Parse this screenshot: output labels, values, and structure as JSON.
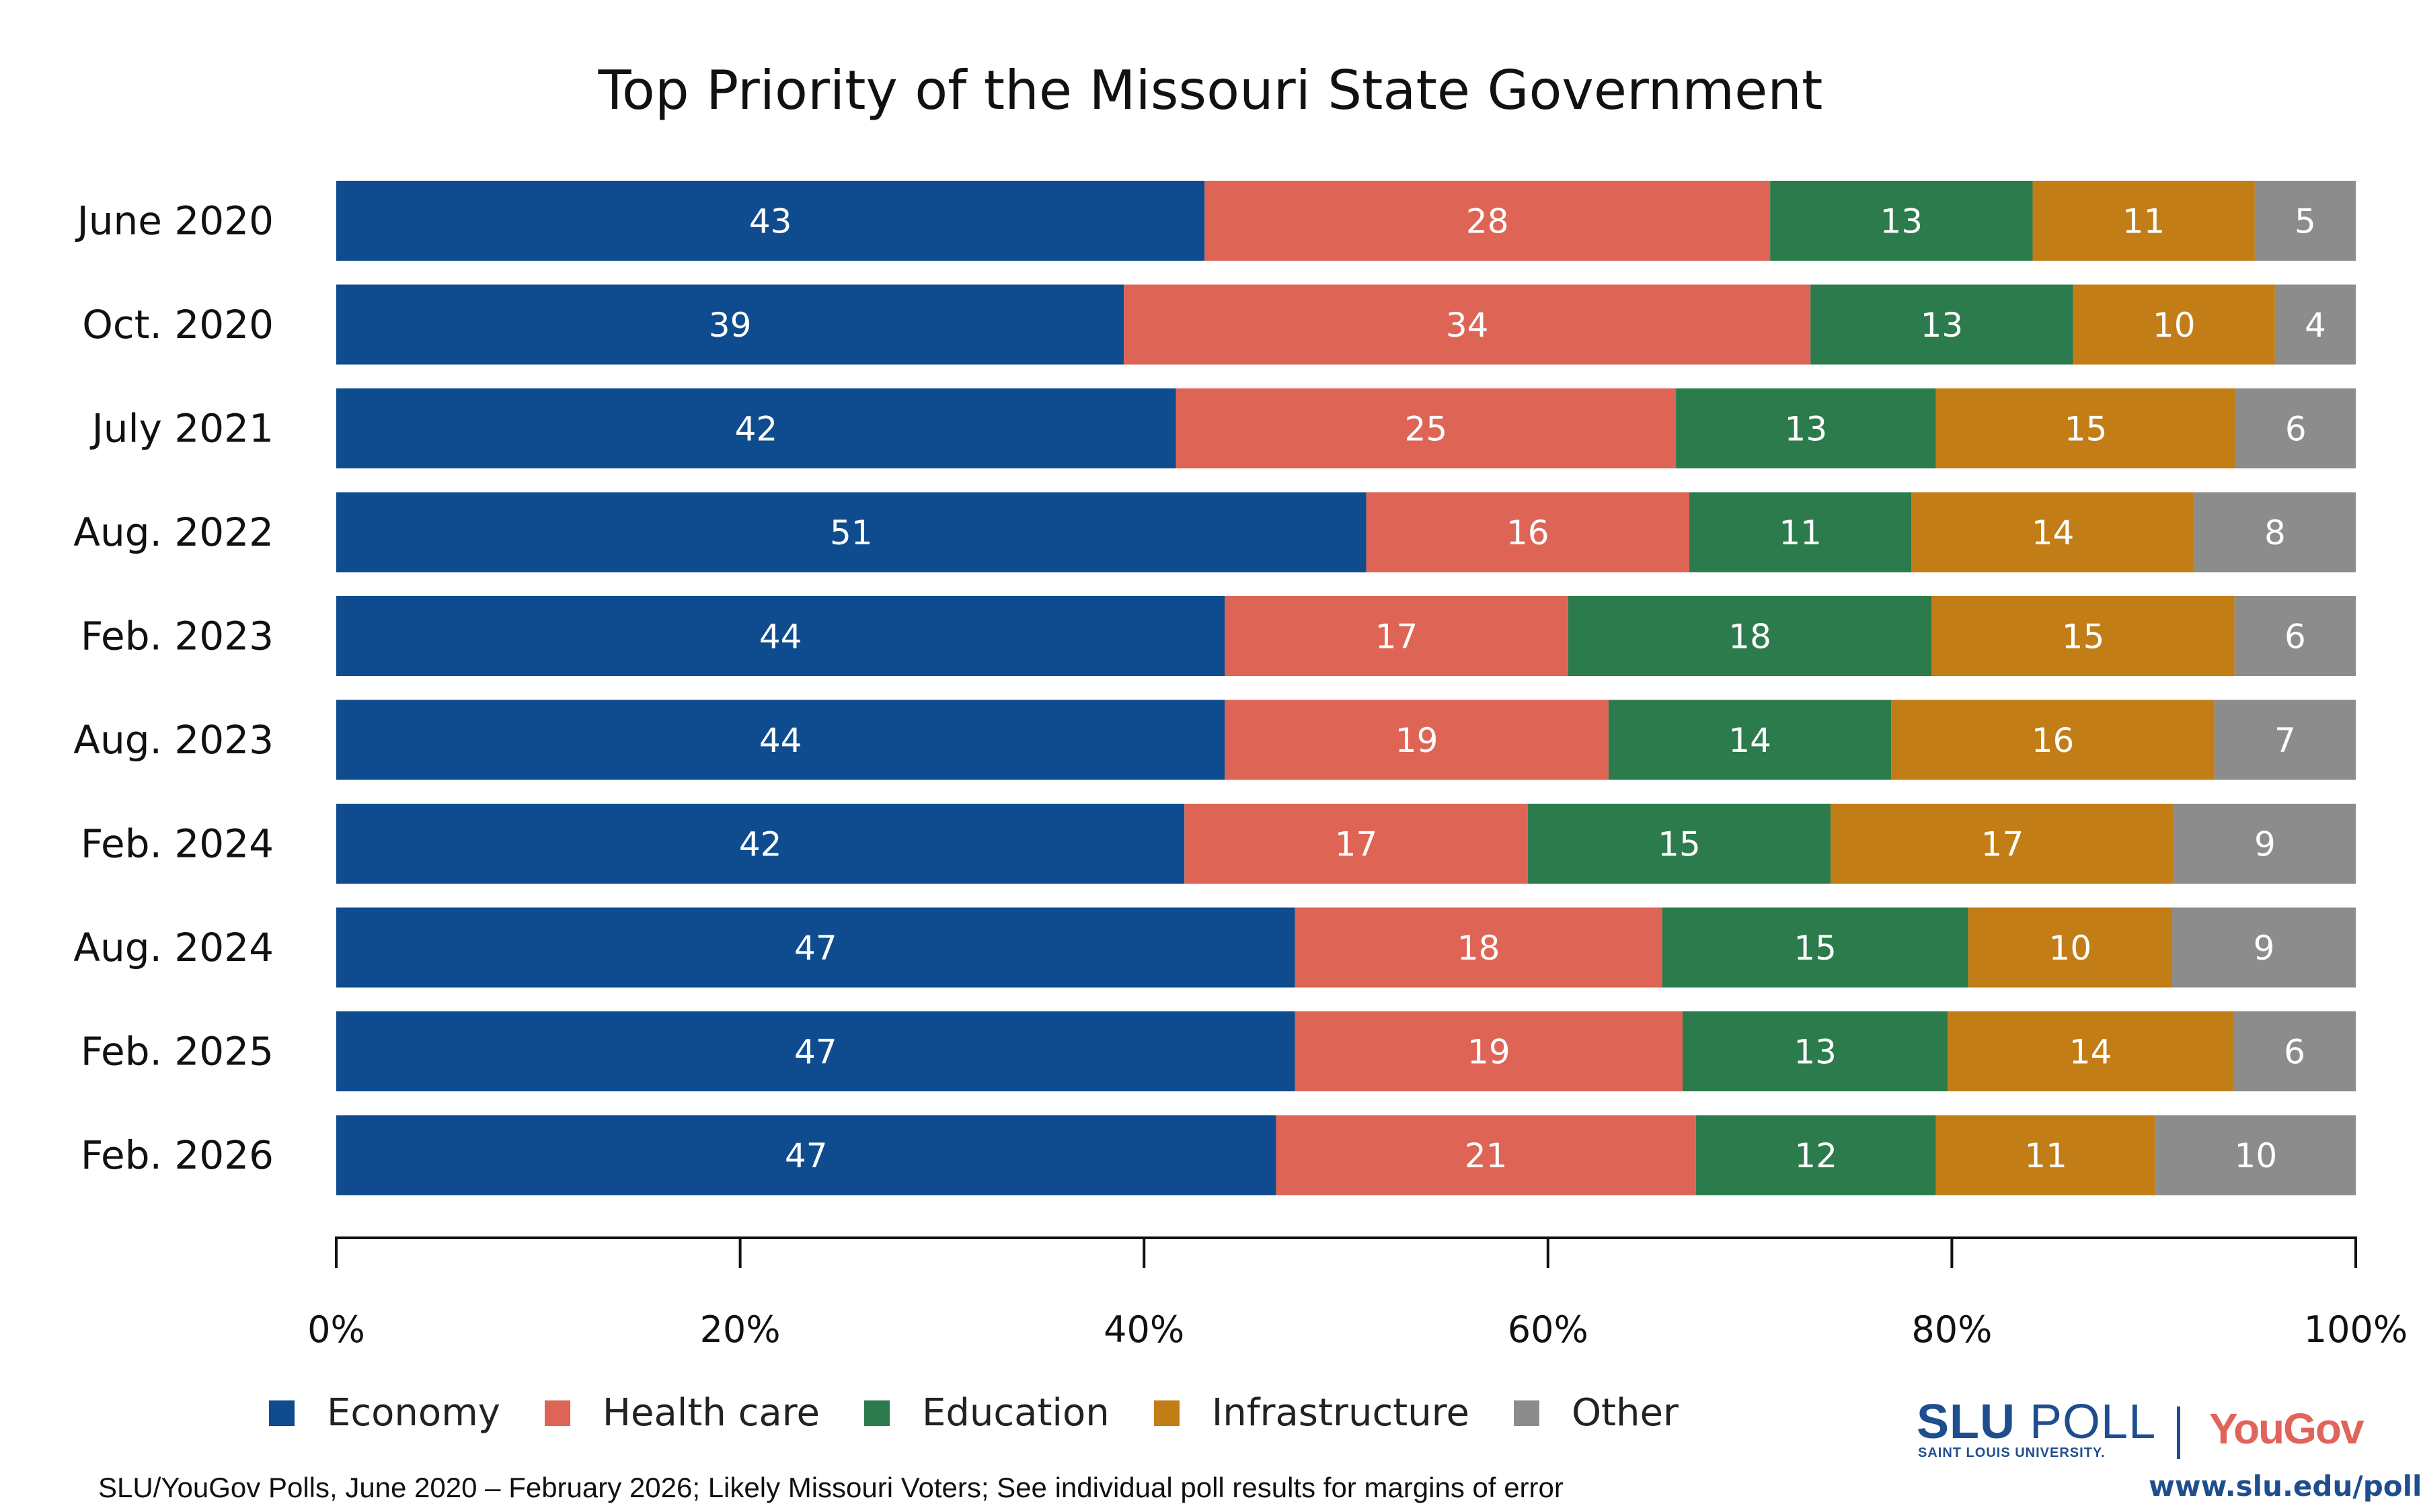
{
  "chart_data": {
    "type": "bar",
    "orientation": "horizontal",
    "stacked": true,
    "title": "Top Priority of the Missouri State Government",
    "categories": [
      "June 2020",
      "Oct. 2020",
      "July 2021",
      "Aug. 2022",
      "Feb. 2023",
      "Aug. 2023",
      "Feb. 2024",
      "Aug. 2024",
      "Feb. 2025",
      "Feb. 2026"
    ],
    "series": [
      {
        "name": "Economy",
        "color": "#0f4c8f",
        "values": [
          43,
          39,
          42,
          51,
          44,
          44,
          42,
          47,
          47,
          47
        ]
      },
      {
        "name": "Health care",
        "color": "#de6456",
        "values": [
          28,
          34,
          25,
          16,
          17,
          19,
          17,
          18,
          19,
          21
        ]
      },
      {
        "name": "Education",
        "color": "#2b7b4c",
        "values": [
          13,
          13,
          13,
          11,
          18,
          14,
          15,
          15,
          13,
          12
        ]
      },
      {
        "name": "Infrastructure",
        "color": "#c27d17",
        "values": [
          11,
          10,
          15,
          14,
          15,
          16,
          17,
          10,
          14,
          11
        ]
      },
      {
        "name": "Other",
        "color": "#8c8c8c",
        "values": [
          5,
          4,
          6,
          8,
          6,
          7,
          9,
          9,
          6,
          10
        ]
      }
    ],
    "xlim": [
      0,
      100
    ],
    "xticks": [
      "0%",
      "20%",
      "40%",
      "60%",
      "80%",
      "100%"
    ],
    "grid": false,
    "legend": "bottom"
  },
  "footnote": "SLU/YouGov Polls, June 2020 – February 2026; Likely Missouri Voters; See individual poll results for margins of error",
  "logo": {
    "slu_bold": "SLU",
    "slu_light": " POLL",
    "slu_sub": "SAINT LOUIS UNIVERSITY.",
    "partner": "YouGov",
    "url": "www.slu.edu/poll"
  }
}
